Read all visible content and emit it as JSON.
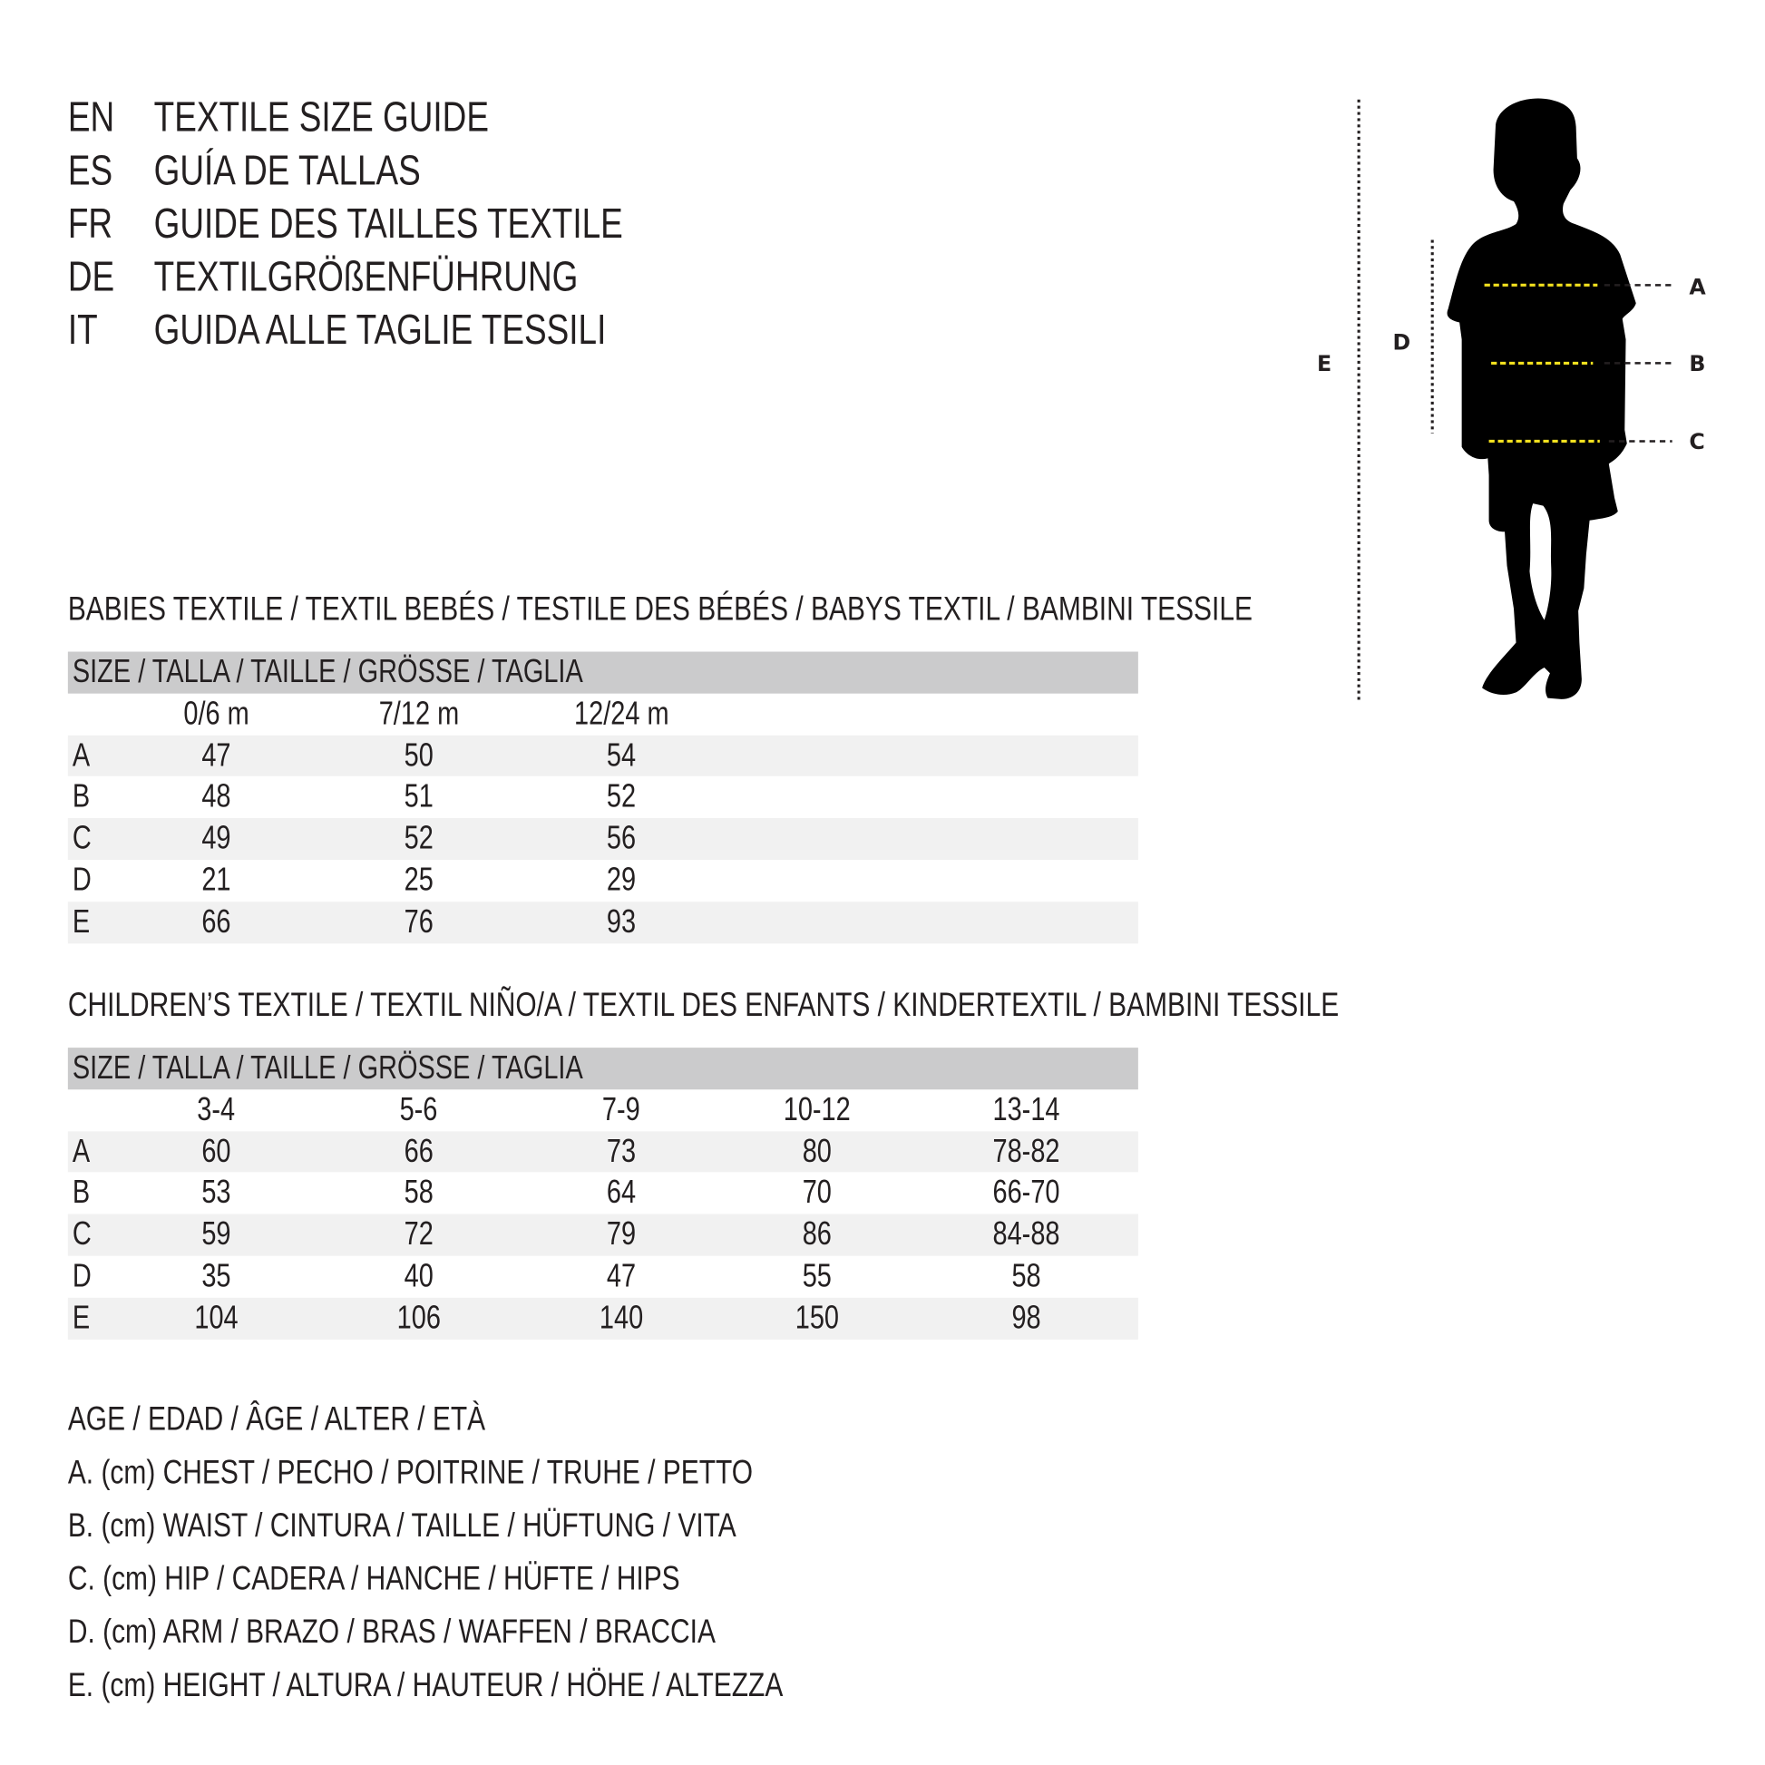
{
  "titles": [
    {
      "code": "EN",
      "text": "TEXTILE SIZE GUIDE"
    },
    {
      "code": "ES",
      "text": "GUÍA DE TALLAS"
    },
    {
      "code": "FR",
      "text": "GUIDE DES TAILLES TEXTILE"
    },
    {
      "code": "DE",
      "text": "TEXTILGRÖßENFÜHRUNG"
    },
    {
      "code": "IT",
      "text": "GUIDA ALLE TAGLIE TESSILI"
    }
  ],
  "babies": {
    "heading": "BABIES TEXTILE / TEXTIL BEBÉS / TESTILE DES BÉBÉS / BABYS TEXTIL / BAMBINI TESSILE",
    "size_header": "SIZE / TALLA / TAILLE / GRÖSSE / TAGLIA",
    "columns": [
      "0/6 m",
      "7/12 m",
      "12/24 m"
    ],
    "rows": [
      {
        "label": "A",
        "values": [
          "47",
          "50",
          "54"
        ]
      },
      {
        "label": "B",
        "values": [
          "48",
          "51",
          "52"
        ]
      },
      {
        "label": "C",
        "values": [
          "49",
          "52",
          "56"
        ]
      },
      {
        "label": "D",
        "values": [
          "21",
          "25",
          "29"
        ]
      },
      {
        "label": "E",
        "values": [
          "66",
          "76",
          "93"
        ]
      }
    ]
  },
  "children": {
    "heading": "CHILDREN’S TEXTILE / TEXTIL NIÑO/A / TEXTIL DES ENFANTS / KINDERTEXTIL / BAMBINI TESSILE",
    "size_header": "SIZE / TALLA / TAILLE / GRÖSSE / TAGLIA",
    "columns": [
      "3-4",
      "5-6",
      "7-9",
      "10-12",
      "13-14"
    ],
    "rows": [
      {
        "label": "A",
        "values": [
          "60",
          "66",
          "73",
          "80",
          "78-82"
        ]
      },
      {
        "label": "B",
        "values": [
          "53",
          "58",
          "64",
          "70",
          "66-70"
        ]
      },
      {
        "label": "C",
        "values": [
          "59",
          "72",
          "79",
          "86",
          "84-88"
        ]
      },
      {
        "label": "D",
        "values": [
          "35",
          "40",
          "47",
          "55",
          "58"
        ]
      },
      {
        "label": "E",
        "values": [
          "104",
          "106",
          "140",
          "150",
          "98"
        ]
      }
    ]
  },
  "legend": [
    "AGE / EDAD / ÂGE / ALTER / ETÀ",
    "A. (cm) CHEST / PECHO / POITRINE / TRUHE / PETTO",
    "B. (cm) WAIST / CINTURA / TAILLE / HÜFTUNG / VITA",
    "C. (cm) HIP / CADERA / HANCHE / HÜFTE / HIPS",
    "D. (cm) ARM / BRAZO / BRAS / WAFFEN / BRACCIA",
    "E. (cm) HEIGHT / ALTURA / HAUTEUR / HÖHE / ALTEZZA"
  ],
  "figure": {
    "labels": {
      "a": "A",
      "b": "B",
      "c": "C",
      "d": "D",
      "e": "E"
    },
    "measure_line_color": "#f2e01e",
    "silhouette_color": "#000000"
  }
}
